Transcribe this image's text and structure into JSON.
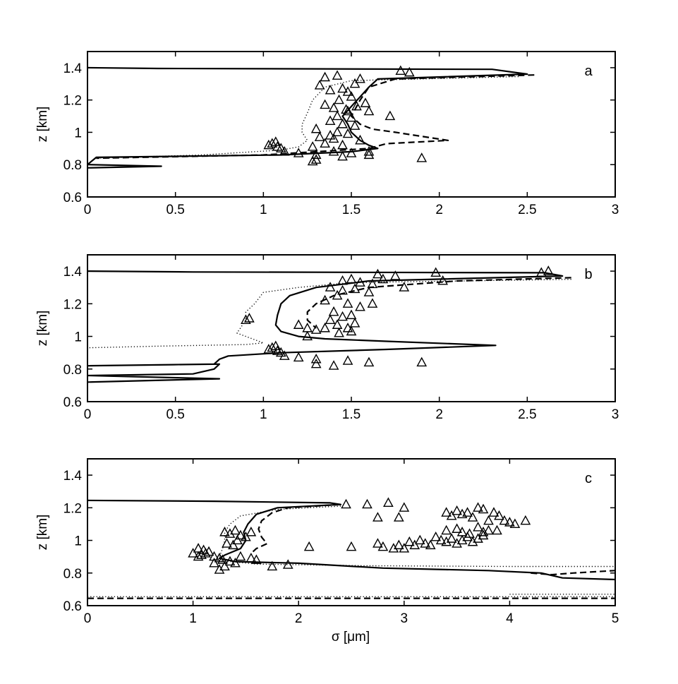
{
  "figure": {
    "xlabel": "σ [μm]",
    "ylabel": "z [km]"
  },
  "chart_data": [
    {
      "type": "line",
      "panel_label": "a",
      "xlabel": "",
      "ylabel": "z [km]",
      "xlim": [
        0,
        3
      ],
      "ylim": [
        0.6,
        1.5
      ],
      "xticks": [
        "0",
        "0.5",
        "1",
        "1.5",
        "2",
        "2.5",
        "3"
      ],
      "yticks": [
        "0.6",
        "0.8",
        "1",
        "1.2",
        "1.4"
      ],
      "grid": false,
      "series": [
        {
          "style": "solid",
          "x": [
            0,
            0.4,
            2.3,
            2.5,
            1.65,
            1.6,
            1.55,
            1.5,
            1.45,
            1.48,
            1.5,
            1.55,
            1.6,
            1.65,
            1.5,
            1.1,
            0.05,
            0,
            0.42,
            0
          ],
          "y": [
            1.4,
            1.395,
            1.39,
            1.36,
            1.33,
            1.28,
            1.22,
            1.16,
            1.1,
            1.05,
            1.0,
            0.95,
            0.92,
            0.9,
            0.88,
            0.86,
            0.845,
            0.8,
            0.79,
            0.78
          ]
        },
        {
          "style": "dashed",
          "x": [
            2.54,
            1.75,
            1.6,
            1.55,
            1.5,
            1.55,
            1.62,
            1.75,
            2.05,
            1.7,
            1.6,
            1.0,
            0.05
          ],
          "y": [
            1.355,
            1.33,
            1.28,
            1.2,
            1.1,
            1.05,
            1.02,
            1.0,
            0.95,
            0.93,
            0.9,
            0.86,
            0.84
          ]
        },
        {
          "style": "dotted",
          "x": [
            2.45,
            1.5,
            1.35,
            1.28,
            1.25,
            1.22,
            1.22,
            1.25,
            1.2,
            1.1,
            0.65,
            0.05
          ],
          "y": [
            1.345,
            1.32,
            1.28,
            1.2,
            1.12,
            1.05,
            1.0,
            0.95,
            0.91,
            0.89,
            0.86,
            0.84
          ]
        },
        {
          "style": "triangles",
          "x": [
            1.78,
            1.83,
            1.35,
            1.42,
            1.55,
            1.52,
            1.32,
            1.38,
            1.45,
            1.48,
            1.5,
            1.43,
            1.58,
            1.35,
            1.4,
            1.47,
            1.53,
            1.6,
            1.42,
            1.5,
            1.38,
            1.45,
            1.52,
            1.3,
            1.42,
            1.48,
            1.32,
            1.4,
            1.55,
            1.35,
            1.28,
            1.45,
            1.05,
            1.07,
            1.08,
            1.1,
            1.03,
            1.12,
            1.2,
            1.3,
            1.4,
            1.5,
            1.6,
            1.3,
            1.28,
            1.45,
            1.9,
            1.6,
            1.48,
            1.72,
            1.38
          ],
          "y": [
            1.38,
            1.37,
            1.34,
            1.35,
            1.33,
            1.3,
            1.29,
            1.26,
            1.27,
            1.25,
            1.22,
            1.2,
            1.18,
            1.17,
            1.15,
            1.14,
            1.16,
            1.13,
            1.1,
            1.09,
            1.07,
            1.05,
            1.04,
            1.02,
            1.0,
            0.99,
            0.97,
            0.96,
            0.95,
            0.93,
            0.91,
            0.92,
            0.93,
            0.94,
            0.91,
            0.9,
            0.92,
            0.88,
            0.87,
            0.86,
            0.88,
            0.87,
            0.86,
            0.83,
            0.82,
            0.85,
            0.84,
            0.88,
            1.13,
            1.1,
            0.98
          ]
        }
      ]
    },
    {
      "type": "line",
      "panel_label": "b",
      "xlabel": "",
      "ylabel": "z [km]",
      "xlim": [
        0,
        3
      ],
      "ylim": [
        0.6,
        1.5
      ],
      "xticks": [
        "0",
        "0.5",
        "1",
        "1.5",
        "2",
        "2.5",
        "3"
      ],
      "yticks": [
        "0.6",
        "0.8",
        "1",
        "1.2",
        "1.4"
      ],
      "grid": false,
      "series": [
        {
          "style": "solid",
          "x": [
            0,
            0.6,
            2.6,
            2.7,
            1.6,
            1.3,
            1.15,
            1.1,
            1.08,
            1.07,
            1.1,
            1.2,
            1.35,
            1.7,
            2.32,
            1.7,
            1.1,
            0.8,
            0.75,
            0.72,
            0,
            0.75,
            0.72,
            0.6,
            0,
            0.75,
            0
          ],
          "y": [
            1.4,
            1.395,
            1.39,
            1.37,
            1.34,
            1.3,
            1.25,
            1.2,
            1.13,
            1.07,
            1.03,
            1.0,
            0.985,
            0.97,
            0.945,
            0.92,
            0.9,
            0.88,
            0.86,
            0.83,
            0.82,
            0.83,
            0.8,
            0.77,
            0.76,
            0.74,
            0.72
          ]
        },
        {
          "style": "dashed",
          "x": [
            2.75,
            2.1,
            1.6,
            1.4,
            1.3,
            1.25,
            1.25,
            1.3
          ],
          "y": [
            1.36,
            1.34,
            1.3,
            1.25,
            1.2,
            1.15,
            1.1,
            1.05
          ]
        },
        {
          "style": "dotted",
          "x": [
            2.75,
            1.5,
            1.2,
            1.0,
            0.95,
            0.9,
            0.9,
            0.85,
            0.95,
            1.0,
            0.9,
            0.4,
            0
          ],
          "y": [
            1.35,
            1.33,
            1.3,
            1.27,
            1.2,
            1.15,
            1.1,
            1.02,
            0.98,
            0.96,
            0.95,
            0.94,
            0.93
          ]
        },
        {
          "style": "triangles",
          "x": [
            2.58,
            2.62,
            1.65,
            1.75,
            1.5,
            1.45,
            1.55,
            1.62,
            1.68,
            1.38,
            1.45,
            1.52,
            1.6,
            1.98,
            2.02,
            1.8,
            1.42,
            1.35,
            1.48,
            1.55,
            1.62,
            1.4,
            1.5,
            1.45,
            1.38,
            1.52,
            1.42,
            1.48,
            1.35,
            1.43,
            1.5,
            1.2,
            1.25,
            1.3,
            1.05,
            1.07,
            1.08,
            1.1,
            1.03,
            1.12,
            1.2,
            1.3,
            1.3,
            1.4,
            1.48,
            1.6,
            1.9,
            0.9,
            0.92,
            1.25
          ],
          "y": [
            1.39,
            1.4,
            1.38,
            1.37,
            1.35,
            1.34,
            1.33,
            1.32,
            1.35,
            1.3,
            1.28,
            1.29,
            1.27,
            1.39,
            1.34,
            1.3,
            1.25,
            1.22,
            1.2,
            1.18,
            1.2,
            1.15,
            1.13,
            1.12,
            1.1,
            1.08,
            1.07,
            1.05,
            1.05,
            1.02,
            1.03,
            1.07,
            1.05,
            1.04,
            0.93,
            0.94,
            0.91,
            0.9,
            0.92,
            0.88,
            0.87,
            0.86,
            0.83,
            0.82,
            0.85,
            0.84,
            0.84,
            1.1,
            1.11,
            1.0
          ]
        }
      ]
    },
    {
      "type": "line",
      "panel_label": "c",
      "xlabel": "σ [μm]",
      "ylabel": "z [km]",
      "xlim": [
        0,
        5
      ],
      "ylim": [
        0.6,
        1.5
      ],
      "xticks": [
        "0",
        "1",
        "2",
        "3",
        "4",
        "5"
      ],
      "yticks": [
        "0.6",
        "0.8",
        "1",
        "1.2",
        "1.4"
      ],
      "grid": false,
      "series": [
        {
          "style": "solid",
          "x": [
            0,
            1.2,
            2.3,
            2.4,
            1.8,
            1.6,
            1.52,
            1.48,
            1.5,
            1.45,
            1.3,
            1.25,
            1.4,
            2.0,
            2.8,
            3.8,
            4.3,
            4.5,
            5.0
          ],
          "y": [
            1.245,
            1.24,
            1.23,
            1.22,
            1.2,
            1.16,
            1.1,
            1.05,
            1.0,
            0.95,
            0.91,
            0.89,
            0.87,
            0.86,
            0.83,
            0.815,
            0.8,
            0.77,
            0.76
          ]
        },
        {
          "style": "dashed",
          "x": [
            2.4,
            1.9,
            1.75,
            1.65,
            1.62,
            1.65,
            1.7,
            1.6,
            1.55
          ],
          "y": [
            1.22,
            1.2,
            1.17,
            1.12,
            1.07,
            1.02,
            0.98,
            0.95,
            0.92
          ]
        },
        {
          "style": "dashed",
          "x": [
            4.2,
            4.4,
            4.6,
            5.0
          ],
          "y": [
            0.8,
            0.79,
            0.8,
            0.815
          ]
        },
        {
          "style": "dashed",
          "x": [
            0,
            5
          ],
          "y": [
            0.645,
            0.645
          ]
        },
        {
          "style": "dotted",
          "x": [
            2.4,
            1.8,
            1.45,
            1.35,
            1.3,
            1.3,
            1.28,
            1.25,
            1.2,
            1.6,
            2.6,
            4.0,
            5.0
          ],
          "y": [
            1.21,
            1.19,
            1.15,
            1.1,
            1.05,
            1.0,
            0.95,
            0.9,
            0.88,
            0.855,
            0.845,
            0.84,
            0.84
          ]
        },
        {
          "style": "dotted",
          "x": [
            0,
            5
          ],
          "y": [
            0.655,
            0.655
          ]
        },
        {
          "style": "dotted",
          "x": [
            4.0,
            5.0
          ],
          "y": [
            0.67,
            0.67
          ]
        },
        {
          "style": "triangles",
          "x": [
            2.45,
            2.65,
            2.85,
            2.75,
            2.95,
            3.0,
            3.4,
            3.5,
            3.45,
            3.55,
            3.6,
            3.7,
            3.65,
            3.75,
            3.85,
            3.9,
            3.95,
            4.0,
            4.05,
            3.8,
            3.88,
            3.4,
            3.5,
            3.55,
            3.62,
            3.7,
            3.75,
            3.8,
            4.15,
            3.3,
            3.35,
            3.4,
            3.45,
            3.5,
            3.55,
            3.6,
            3.65,
            3.7,
            3.75,
            3.2,
            3.25,
            3.1,
            3.15,
            3.0,
            2.9,
            2.8,
            2.75,
            2.5,
            2.95,
            3.05,
            1.05,
            1.1,
            1.15,
            1.08,
            1.12,
            1.3,
            1.35,
            1.4,
            1.45,
            1.5,
            1.55,
            1.32,
            1.38,
            1.42,
            1.2,
            1.25,
            1.28,
            1.35,
            1.4,
            1.45,
            1.6,
            1.9,
            1.0,
            1.05,
            1.3,
            1.2,
            1.25,
            1.55,
            1.75,
            2.1
          ],
          "y": [
            1.22,
            1.22,
            1.23,
            1.14,
            1.14,
            1.2,
            1.17,
            1.18,
            1.15,
            1.16,
            1.17,
            1.2,
            1.14,
            1.19,
            1.17,
            1.15,
            1.12,
            1.11,
            1.1,
            1.12,
            1.06,
            1.06,
            1.07,
            1.05,
            1.04,
            1.08,
            1.05,
            1.06,
            1.12,
            1.02,
            1.0,
            0.99,
            1.01,
            0.98,
            1.0,
            1.02,
            0.99,
            1.01,
            1.03,
            0.98,
            0.97,
            0.97,
            1.0,
            0.95,
            0.95,
            0.96,
            0.98,
            0.96,
            0.97,
            0.99,
            0.95,
            0.94,
            0.93,
            0.91,
            0.92,
            1.05,
            1.04,
            1.06,
            1.03,
            1.02,
            1.05,
            0.98,
            0.97,
            1.0,
            0.9,
            0.89,
            0.88,
            0.87,
            0.86,
            0.9,
            0.88,
            0.85,
            0.92,
            0.9,
            0.84,
            0.86,
            0.82,
            0.89,
            0.84,
            0.96
          ]
        }
      ]
    }
  ]
}
